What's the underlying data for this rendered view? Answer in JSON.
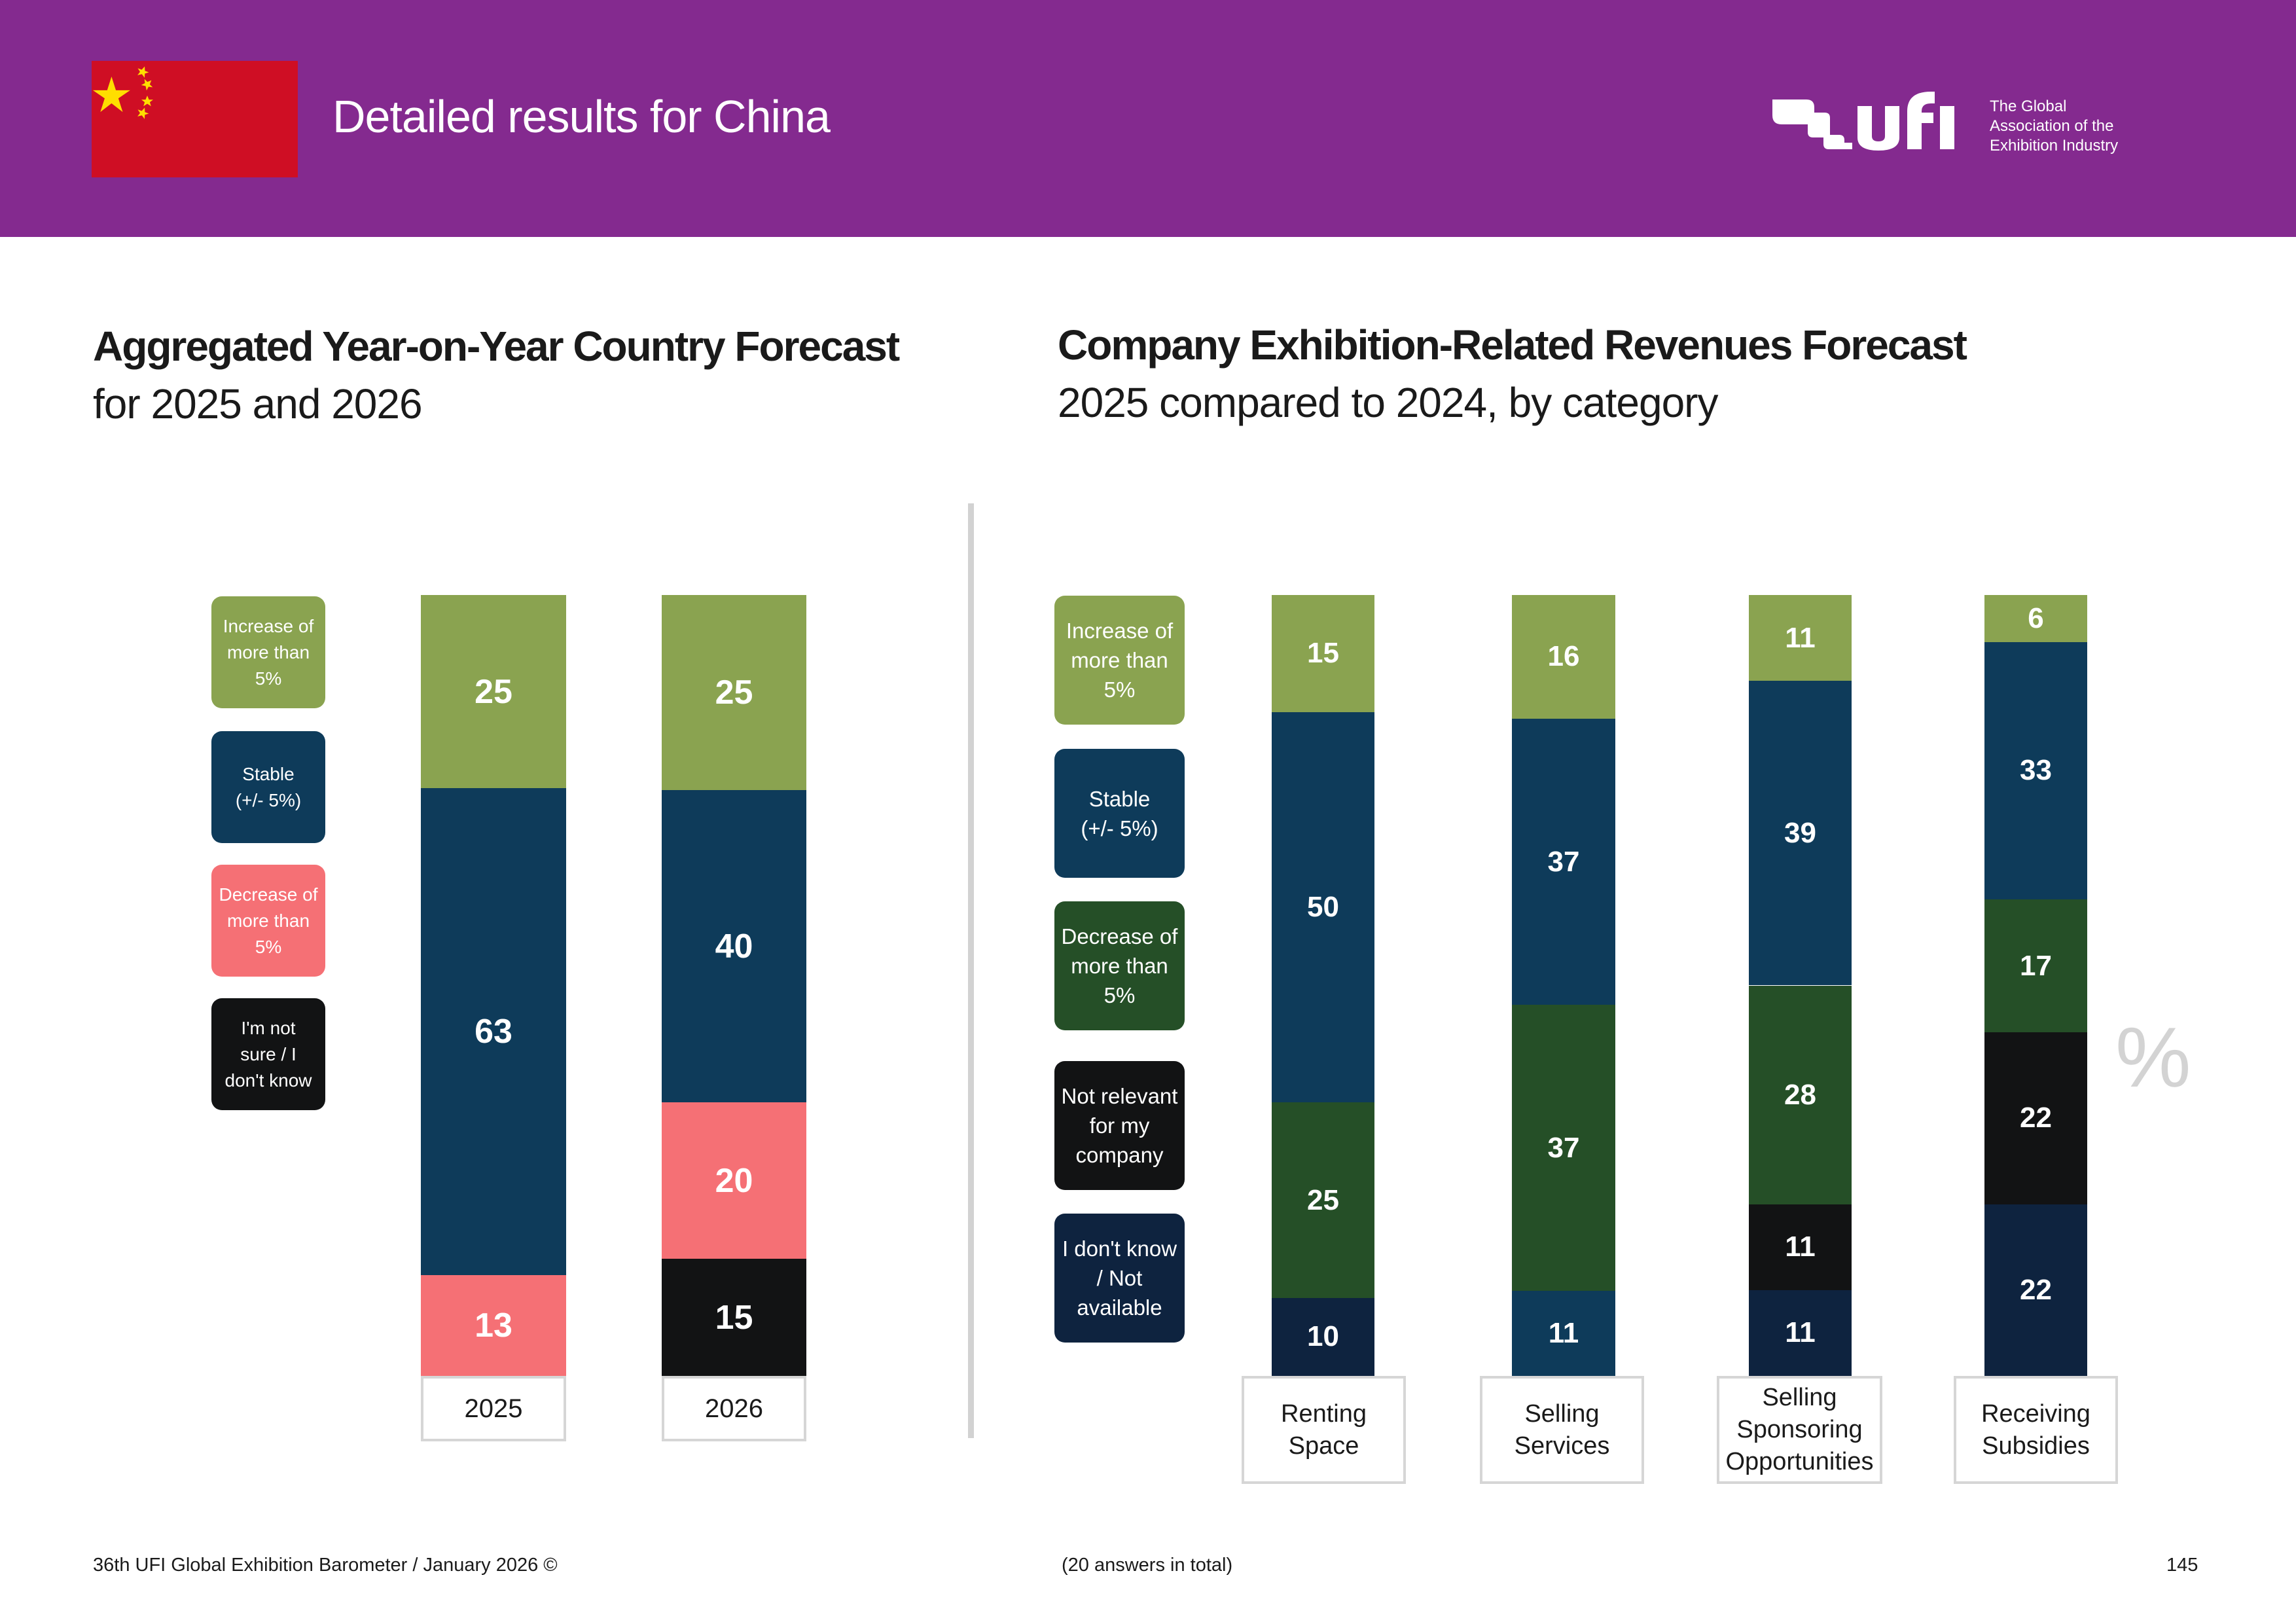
{
  "header": {
    "title": "Detailed results for China",
    "flag": "china-flag",
    "logo": {
      "wordmark": "ufi",
      "tagline": [
        "The Global",
        "Association of the",
        "Exhibition Industry"
      ]
    },
    "background_color": "#842a8f"
  },
  "colors": {
    "increase": "#8aa350",
    "stable": "#0e3b5a",
    "decrease_left": "#f57075",
    "decrease_right": "#254f27",
    "not_sure": "#121314",
    "not_relevant": "#121314",
    "dont_know": "#0e233f"
  },
  "left_section": {
    "title": "Aggregated Year-on-Year Country Forecast",
    "subtitle": "for 2025 and 2026",
    "legend": [
      {
        "key": "increase",
        "lines": [
          "Increase of",
          "more than",
          "5%"
        ],
        "color": "#8aa350"
      },
      {
        "key": "stable",
        "lines": [
          "Stable",
          "(+/- 5%)"
        ],
        "color": "#0e3b5a"
      },
      {
        "key": "decrease",
        "lines": [
          "Decrease of",
          "more than",
          "5%"
        ],
        "color": "#f57075"
      },
      {
        "key": "not_sure",
        "lines": [
          "I'm not",
          "sure / I",
          "don't know"
        ],
        "color": "#121314"
      }
    ]
  },
  "right_section": {
    "title": "Company Exhibition-Related Revenues Forecast",
    "subtitle": "2025 compared to 2024, by category",
    "legend": [
      {
        "key": "increase",
        "lines": [
          "Increase of",
          "more than",
          "5%"
        ],
        "color": "#8aa350"
      },
      {
        "key": "stable",
        "lines": [
          "Stable",
          "(+/- 5%)"
        ],
        "color": "#0e3b5a"
      },
      {
        "key": "decrease",
        "lines": [
          "Decrease of",
          "more than",
          "5%"
        ],
        "color": "#254f27"
      },
      {
        "key": "not_relevant",
        "lines": [
          "Not relevant",
          "for my",
          "company"
        ],
        "color": "#121314"
      },
      {
        "key": "dont_know",
        "lines": [
          "I don't know",
          "/ Not",
          "available"
        ],
        "color": "#0e233f"
      }
    ],
    "unit_symbol": "%"
  },
  "chart_data": [
    {
      "type": "bar",
      "stacked": true,
      "title": "Aggregated Year-on-Year Country Forecast",
      "subtitle": "for 2025 and 2026",
      "unit": "%",
      "categories": [
        "2025",
        "2026"
      ],
      "series": [
        {
          "name": "Increase of more than 5%",
          "values": [
            25,
            25
          ],
          "color": "#8aa350"
        },
        {
          "name": "Stable (+/- 5%)",
          "values": [
            63,
            40
          ],
          "color": "#0e3b5a"
        },
        {
          "name": "Decrease of more than 5%",
          "values": [
            13,
            20
          ],
          "color": "#f57075"
        },
        {
          "name": "I'm not sure / I don't know",
          "values": [
            0,
            15
          ],
          "color": "#121314"
        }
      ],
      "legend_position": "left",
      "ylim": [
        0,
        100
      ],
      "grid": false
    },
    {
      "type": "bar",
      "stacked": true,
      "title": "Company Exhibition-Related Revenues Forecast",
      "subtitle": "2025 compared to 2024, by category",
      "unit": "%",
      "categories": [
        "Renting Space",
        "Selling Services",
        "Selling Sponsoring Opportunities",
        "Receiving Subsidies"
      ],
      "category_lines": [
        [
          "Renting",
          "Space"
        ],
        [
          "Selling",
          "Services"
        ],
        [
          "Selling",
          "Sponsoring",
          "Opportunities"
        ],
        [
          "Receiving",
          "Subsidies"
        ]
      ],
      "series": [
        {
          "name": "Increase of more than 5%",
          "values": [
            15,
            16,
            11,
            6
          ],
          "color": "#8aa350"
        },
        {
          "name": "Stable (+/- 5%)",
          "values": [
            50,
            37,
            39,
            33
          ],
          "color": "#0e3b5a"
        },
        {
          "name": "Decrease of more than 5%",
          "values": [
            25,
            37,
            28,
            17
          ],
          "color": "#254f27"
        },
        {
          "name": "Not relevant for my company",
          "values": [
            0,
            0,
            11,
            22
          ],
          "color": "#121314"
        },
        {
          "name": "I don't know / Not available",
          "values": [
            10,
            11,
            11,
            22
          ],
          "color": "#0e233f",
          "segment_colors": [
            "#0e233f",
            "#0e3b5a",
            "#0e233f",
            "#0e233f"
          ]
        }
      ],
      "legend_position": "left",
      "ylim": [
        0,
        100
      ],
      "grid": false
    }
  ],
  "footer": {
    "left": "36th UFI Global Exhibition Barometer / January 2026 ©",
    "center": "(20 answers in total)",
    "page_number": "145"
  }
}
